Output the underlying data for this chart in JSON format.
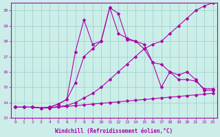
{
  "xlabel": "Windchill (Refroidissement éolien,°C)",
  "background_color": "#cceee8",
  "line_color": "#aa00aa",
  "x": [
    0,
    1,
    2,
    3,
    4,
    5,
    6,
    7,
    8,
    9,
    10,
    11,
    12,
    13,
    14,
    15,
    16,
    17,
    18,
    19,
    20,
    21,
    22,
    23
  ],
  "series1": [
    13.7,
    13.7,
    13.7,
    13.65,
    13.65,
    13.7,
    13.75,
    13.8,
    13.85,
    13.9,
    13.95,
    14.0,
    14.05,
    14.1,
    14.15,
    14.2,
    14.25,
    14.3,
    14.35,
    14.4,
    14.45,
    14.5,
    14.55,
    14.6
  ],
  "series2": [
    13.7,
    13.7,
    13.7,
    13.65,
    13.65,
    13.75,
    13.8,
    14.0,
    14.3,
    14.6,
    15.0,
    15.5,
    16.0,
    16.5,
    17.0,
    17.5,
    17.8,
    18.0,
    18.5,
    19.0,
    19.5,
    20.0,
    20.3,
    20.5
  ],
  "series3": [
    13.7,
    13.7,
    13.7,
    13.65,
    13.7,
    13.9,
    14.2,
    15.3,
    17.0,
    17.5,
    18.0,
    20.2,
    19.8,
    18.1,
    18.0,
    17.5,
    16.6,
    16.5,
    16.0,
    15.8,
    16.0,
    15.5,
    14.8,
    14.8
  ],
  "series4": [
    13.7,
    13.7,
    13.7,
    13.65,
    13.7,
    13.9,
    14.2,
    17.3,
    19.4,
    17.8,
    18.0,
    20.2,
    18.5,
    18.2,
    18.0,
    17.8,
    16.6,
    15.0,
    16.0,
    15.5,
    15.5,
    15.4,
    14.9,
    14.9
  ],
  "ylim_min": 13,
  "ylim_max": 20.5,
  "xlim_min": -0.5,
  "xlim_max": 23.5,
  "yticks": [
    13,
    14,
    15,
    16,
    17,
    18,
    19,
    20
  ],
  "xticks": [
    0,
    1,
    2,
    3,
    4,
    5,
    6,
    7,
    8,
    9,
    10,
    11,
    12,
    13,
    14,
    15,
    16,
    17,
    18,
    19,
    20,
    21,
    22,
    23
  ],
  "grid_color": "#99cccc",
  "markersize": 2.5,
  "linewidth": 0.8,
  "tick_fontsize": 4.5,
  "xlabel_fontsize": 5.5
}
